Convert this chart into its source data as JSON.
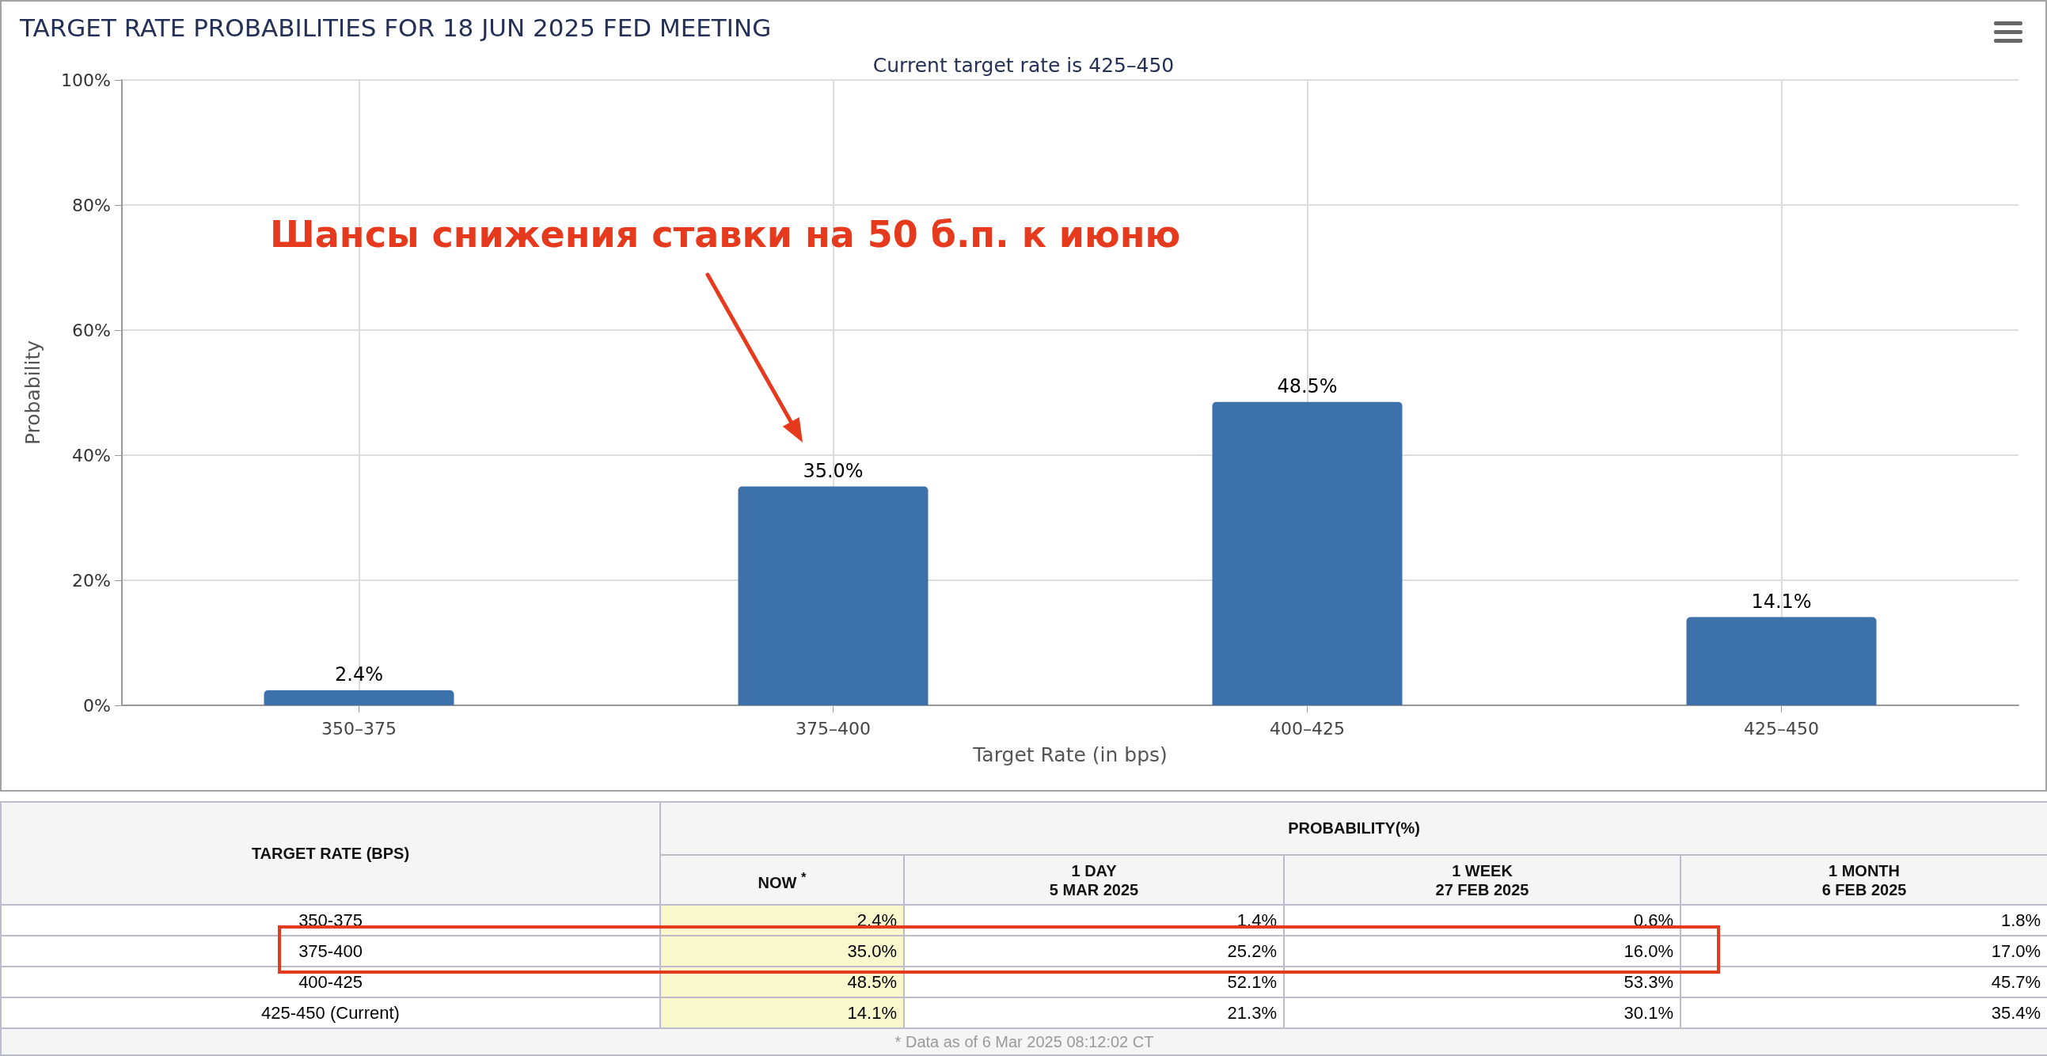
{
  "chart_data": [
    {
      "type": "bar",
      "title": "TARGET RATE PROBABILITIES FOR 18 JUN 2025 FED MEETING",
      "subtitle": "Current target rate is 425–450",
      "xlabel": "Target Rate (in bps)",
      "ylabel": "Probability",
      "categories": [
        "350–375",
        "375–400",
        "400–425",
        "425–450"
      ],
      "values": [
        2.4,
        35.0,
        48.5,
        14.1
      ],
      "value_labels": [
        "2.4%",
        "35.0%",
        "48.5%",
        "14.1%"
      ],
      "color": "#3d71aa",
      "ylim": [
        0,
        100
      ],
      "yticks": [
        {
          "value": 0,
          "label": "0%"
        },
        {
          "value": 20,
          "label": "20%"
        },
        {
          "value": 40,
          "label": "40%"
        },
        {
          "value": 60,
          "label": "60%"
        },
        {
          "value": 80,
          "label": "80%"
        },
        {
          "value": 100,
          "label": "100%"
        }
      ],
      "grid": true,
      "annotations": [
        "Шансы снижения ставки на 50 б.п. к июню"
      ]
    },
    {
      "type": "other",
      "title": "PROBABILITY(%)",
      "xlabel": "TARGET RATE (BPS)",
      "categories": [
        "350-375",
        "375-400",
        "400-425",
        "425-450 (Current)"
      ],
      "series": [
        {
          "name": "NOW $^{*}$",
          "color": "#f8f8cc",
          "values": [
            2.4,
            35.0,
            48.5,
            14.1
          ],
          "value_labels": [
            "2.4%",
            "35.0%",
            "48.5%",
            "14.1%"
          ]
        },
        {
          "name": "1 DAY\n5 MAR 2025",
          "values": [
            1.4,
            25.2,
            52.1,
            21.3
          ],
          "value_labels": [
            "1.4%",
            "25.2%",
            "52.1%",
            "21.3%"
          ]
        },
        {
          "name": "1 WEEK\n27 FEB 2025",
          "values": [
            0.6,
            16.0,
            53.3,
            30.1
          ],
          "value_labels": [
            "0.6%",
            "16.0%",
            "53.3%",
            "30.1%"
          ]
        },
        {
          "name": "1 MONTH\n6 FEB 2025",
          "values": [
            1.8,
            17.0,
            45.7,
            35.4
          ],
          "value_labels": [
            "1.8%",
            "17.0%",
            "45.7%",
            "35.4%"
          ]
        }
      ],
      "annotations": [
        "* Data as of 6 Mar 2025 08:12:02 CT"
      ]
    }
  ]
}
